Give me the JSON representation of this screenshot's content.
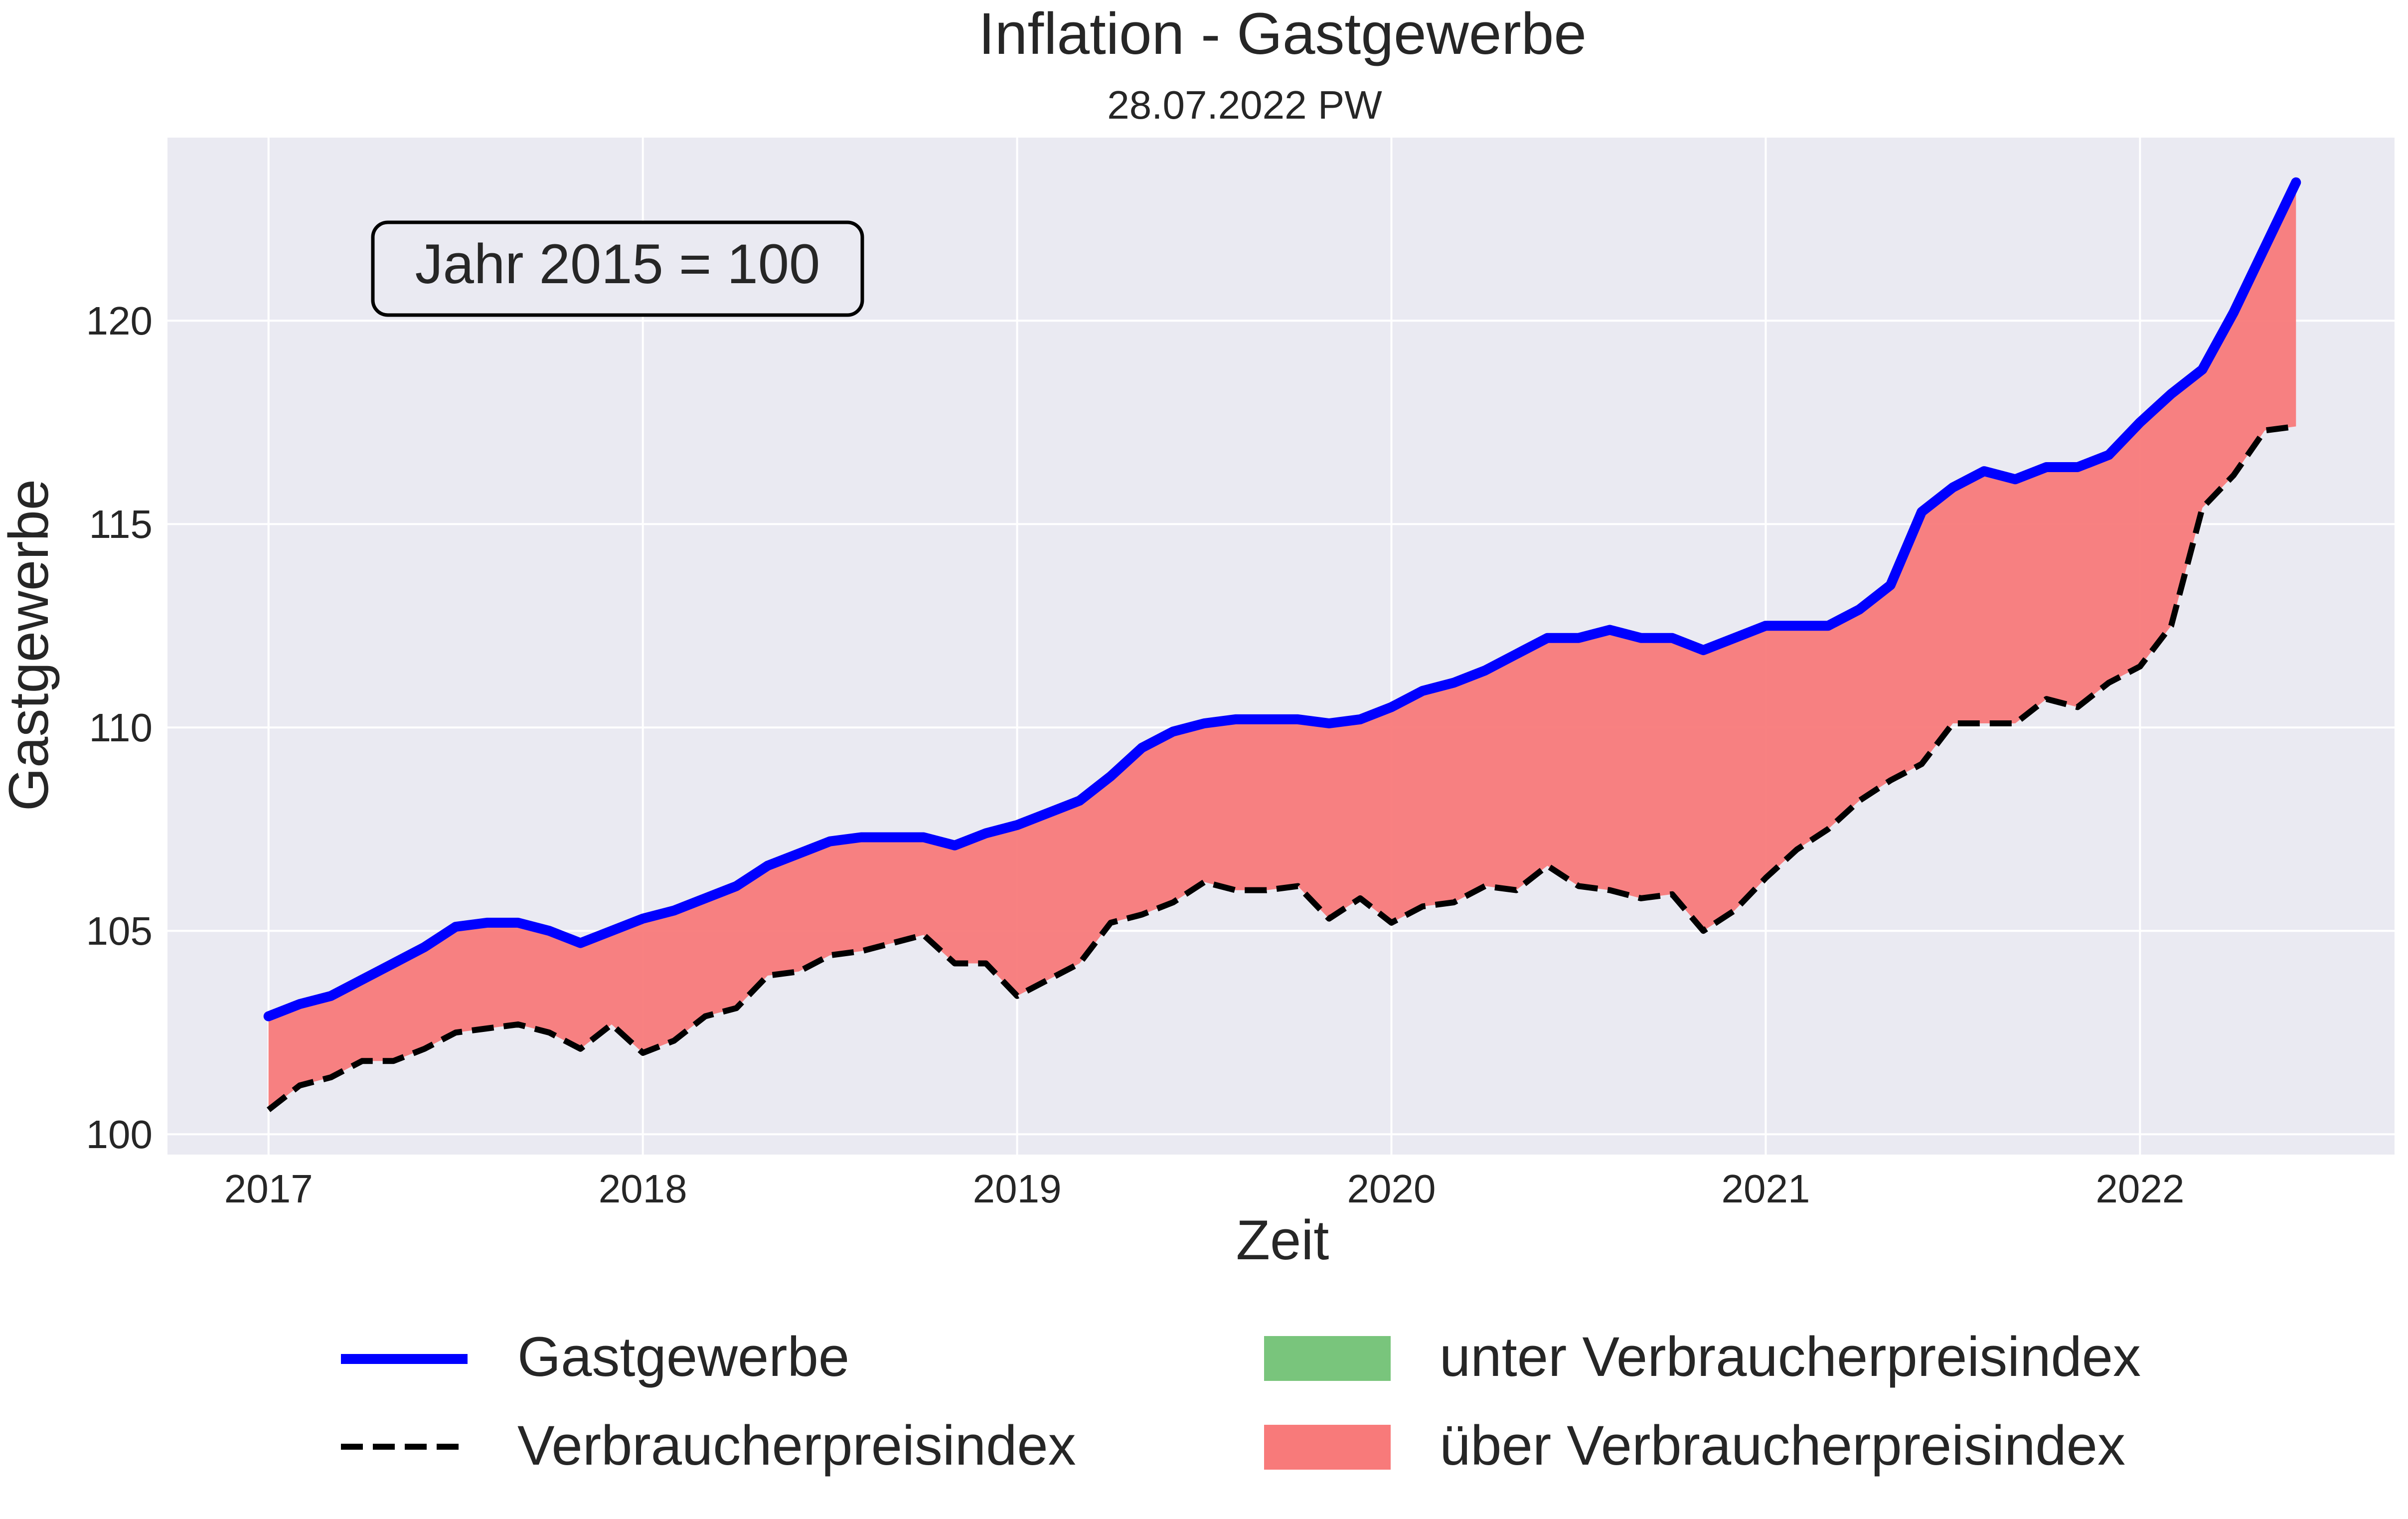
{
  "chart_data": {
    "type": "line",
    "title": "Inflation - Gastgewerbe",
    "subtitle": "28.07.2022 PW",
    "xlabel": "Zeit",
    "ylabel": "Gastgewerbe",
    "annotation": "Jahr 2015 = 100",
    "xlim": [
      2016.73,
      2022.68
    ],
    "ylim": [
      99.5,
      124.5
    ],
    "x_ticks": [
      2017,
      2018,
      2019,
      2020,
      2021,
      2022
    ],
    "x_tick_labels": [
      "2017",
      "2018",
      "2019",
      "2020",
      "2021",
      "2022"
    ],
    "y_ticks": [
      100,
      105,
      110,
      115,
      120
    ],
    "y_tick_labels": [
      "100",
      "105",
      "110",
      "115",
      "120"
    ],
    "grid": true,
    "legend_position": "bottom",
    "x": [
      "2017-01",
      "2017-02",
      "2017-03",
      "2017-04",
      "2017-05",
      "2017-06",
      "2017-07",
      "2017-08",
      "2017-09",
      "2017-10",
      "2017-11",
      "2017-12",
      "2018-01",
      "2018-02",
      "2018-03",
      "2018-04",
      "2018-05",
      "2018-06",
      "2018-07",
      "2018-08",
      "2018-09",
      "2018-10",
      "2018-11",
      "2018-12",
      "2019-01",
      "2019-02",
      "2019-03",
      "2019-04",
      "2019-05",
      "2019-06",
      "2019-07",
      "2019-08",
      "2019-09",
      "2019-10",
      "2019-11",
      "2019-12",
      "2020-01",
      "2020-02",
      "2020-03",
      "2020-04",
      "2020-05",
      "2020-06",
      "2020-07",
      "2020-08",
      "2020-09",
      "2020-10",
      "2020-11",
      "2020-12",
      "2021-01",
      "2021-02",
      "2021-03",
      "2021-04",
      "2021-05",
      "2021-06",
      "2021-07",
      "2021-08",
      "2021-09",
      "2021-10",
      "2021-11",
      "2021-12",
      "2022-01",
      "2022-02",
      "2022-03",
      "2022-04",
      "2022-05",
      "2022-06"
    ],
    "series": [
      {
        "name": "Gastgewerbe",
        "color": "#0000ff",
        "style": "solid",
        "values": [
          102.9,
          103.2,
          103.4,
          103.8,
          104.2,
          104.6,
          105.1,
          105.2,
          105.2,
          105.0,
          104.7,
          105.0,
          105.3,
          105.5,
          105.8,
          106.1,
          106.6,
          106.9,
          107.2,
          107.3,
          107.3,
          107.3,
          107.1,
          107.4,
          107.6,
          107.9,
          108.2,
          108.8,
          109.5,
          109.9,
          110.1,
          110.2,
          110.2,
          110.2,
          110.1,
          110.2,
          110.5,
          110.9,
          111.1,
          111.4,
          111.8,
          112.2,
          112.2,
          112.4,
          112.2,
          112.2,
          111.9,
          112.2,
          112.5,
          112.5,
          112.5,
          112.9,
          113.5,
          115.3,
          115.9,
          116.3,
          116.1,
          116.4,
          116.4,
          116.7,
          117.5,
          118.2,
          118.8,
          120.2,
          121.8,
          123.4
        ]
      },
      {
        "name": "Verbraucherpreisindex",
        "color": "#000000",
        "style": "dashed",
        "values": [
          100.6,
          101.2,
          101.4,
          101.8,
          101.8,
          102.1,
          102.5,
          102.6,
          102.7,
          102.5,
          102.1,
          102.7,
          102.0,
          102.3,
          102.9,
          103.1,
          103.9,
          104.0,
          104.4,
          104.5,
          104.7,
          104.9,
          104.2,
          104.2,
          103.4,
          103.8,
          104.2,
          105.2,
          105.4,
          105.7,
          106.2,
          106.0,
          106.0,
          106.1,
          105.3,
          105.8,
          105.2,
          105.6,
          105.7,
          106.1,
          106.0,
          106.6,
          106.1,
          106.0,
          105.8,
          105.9,
          105.0,
          105.5,
          106.3,
          107.0,
          107.5,
          108.2,
          108.7,
          109.1,
          110.1,
          110.1,
          110.1,
          110.7,
          110.5,
          111.1,
          111.5,
          112.5,
          115.4,
          116.2,
          117.3,
          117.4
        ]
      }
    ],
    "fills": [
      {
        "name": "unter Verbraucherpreisindex",
        "color": "#79c57c"
      },
      {
        "name": "über Verbraucherpreisindex",
        "color": "#f87a7a"
      }
    ]
  }
}
